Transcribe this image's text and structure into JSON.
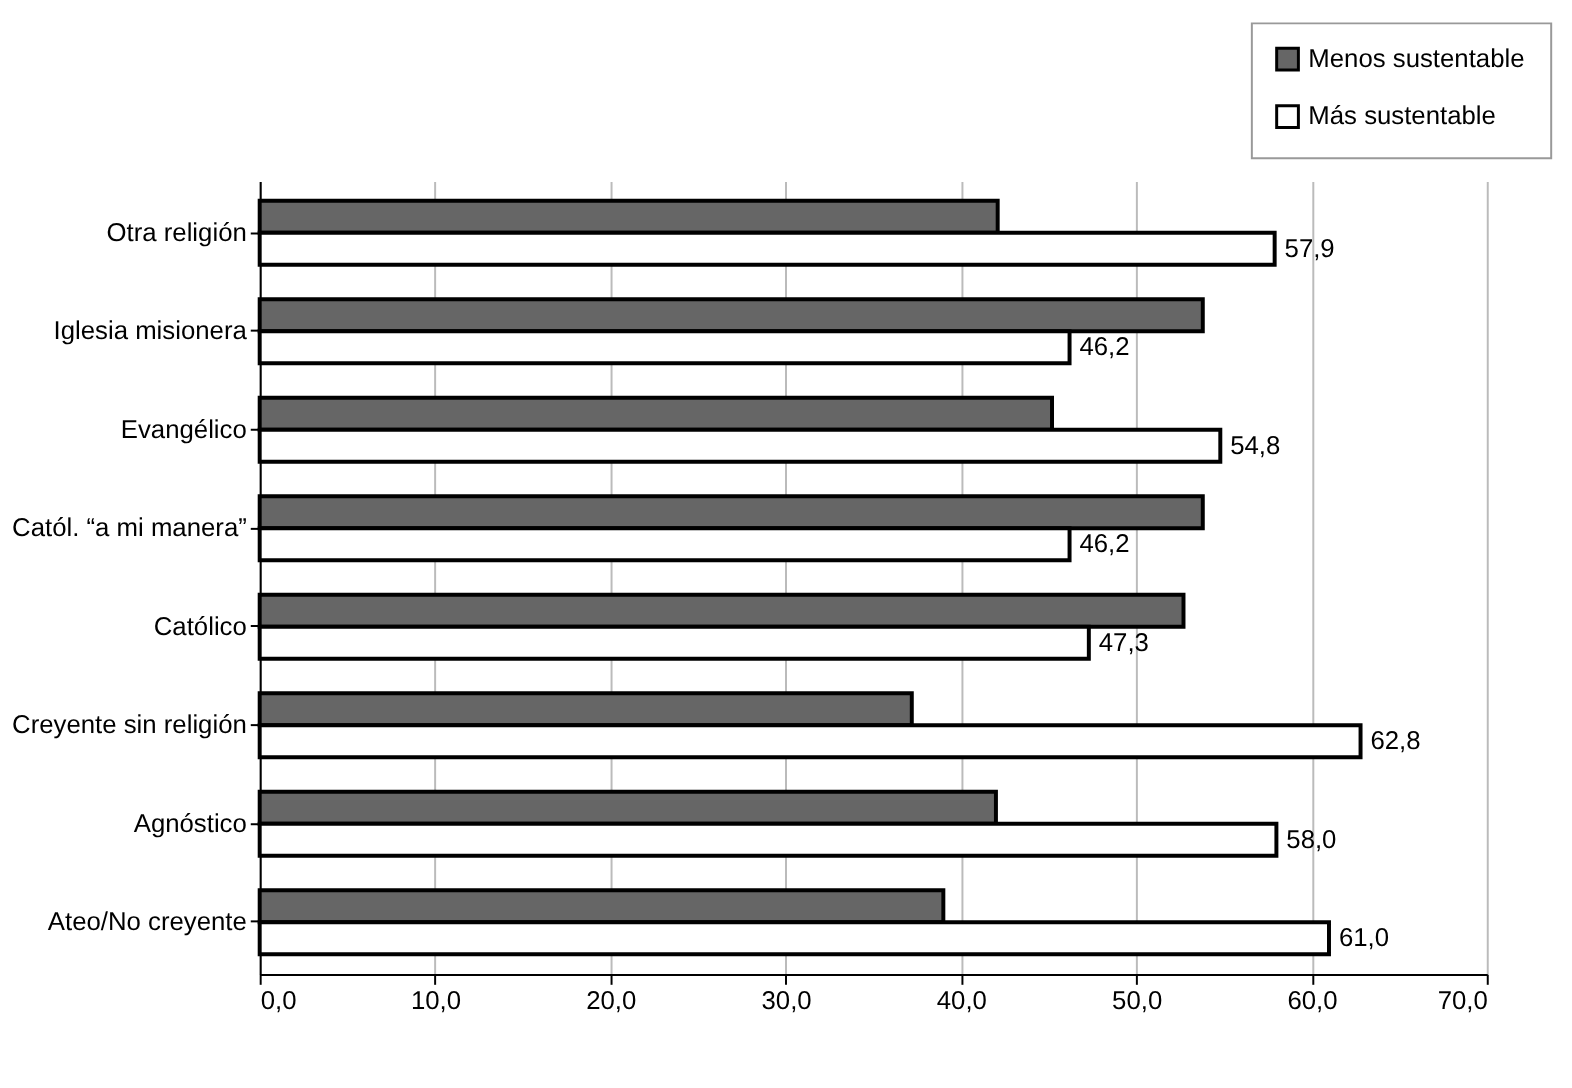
{
  "chart_data": {
    "type": "bar",
    "orientation": "horizontal",
    "categories": [
      "Otra religión",
      "Iglesia misionera",
      "Evangélico",
      "Catól. “a mi manera”",
      "Católico",
      "Creyente sin religión",
      "Agnóstico",
      "Ateo/No creyente"
    ],
    "series": [
      {
        "name": "Menos sustentable",
        "color": "#666666",
        "values": [
          42.1,
          53.8,
          45.2,
          53.8,
          52.7,
          37.2,
          42.0,
          39.0
        ]
      },
      {
        "name": "Más sustentable",
        "color": "#ffffff",
        "values": [
          57.9,
          46.2,
          54.8,
          46.2,
          47.3,
          62.8,
          58.0,
          61.0
        ],
        "value_labels": [
          "57,9",
          "46,2",
          "54,8",
          "46,2",
          "47,3",
          "62,8",
          "58,0",
          "61,0"
        ]
      }
    ],
    "xlim": [
      0,
      70
    ],
    "xticks": [
      {
        "value": 0,
        "label": "0,0"
      },
      {
        "value": 10,
        "label": "10,0"
      },
      {
        "value": 20,
        "label": "20,0"
      },
      {
        "value": 30,
        "label": "30,0"
      },
      {
        "value": 40,
        "label": "40,0"
      },
      {
        "value": 50,
        "label": "50,0"
      },
      {
        "value": 60,
        "label": "60,0"
      },
      {
        "value": 70,
        "label": "70,0"
      }
    ],
    "grid": "x",
    "legend": "top right"
  }
}
